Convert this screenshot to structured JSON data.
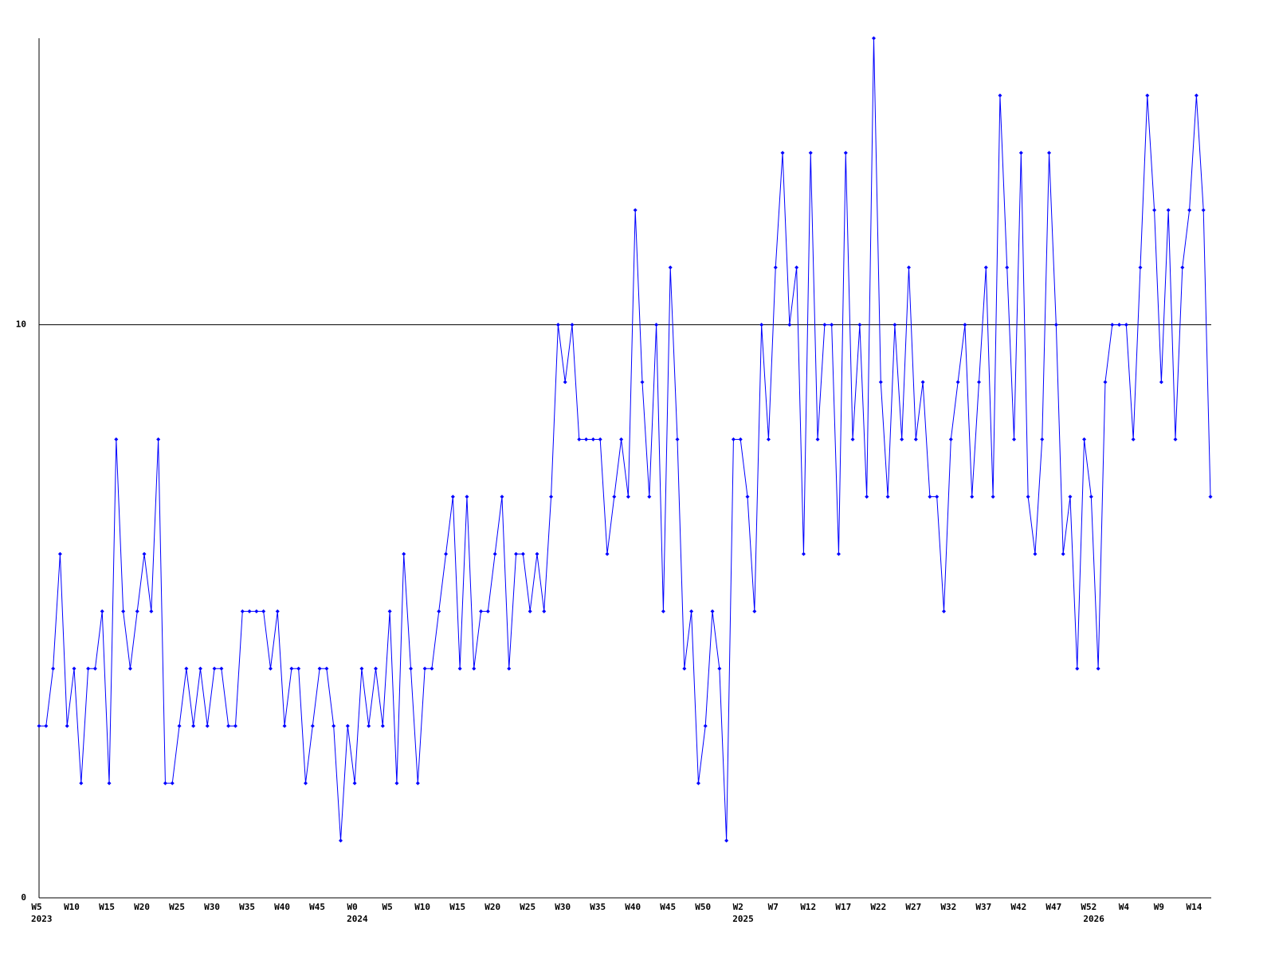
{
  "chart_data": {
    "type": "line",
    "categories": [
      "W5",
      null,
      null,
      null,
      null,
      "W10",
      null,
      null,
      null,
      null,
      "W15",
      null,
      null,
      null,
      null,
      "W20",
      null,
      null,
      null,
      null,
      "W25",
      null,
      null,
      null,
      null,
      "W30",
      null,
      null,
      null,
      null,
      "W35",
      null,
      null,
      null,
      null,
      "W40",
      null,
      null,
      null,
      null,
      "W45",
      null,
      null,
      null,
      null,
      "W0",
      null,
      null,
      null,
      null,
      "W5",
      null,
      null,
      null,
      null,
      "W10",
      null,
      null,
      null,
      null,
      "W15",
      null,
      null,
      null,
      null,
      "W20",
      null,
      null,
      null,
      null,
      "W25",
      null,
      null,
      null,
      null,
      "W30",
      null,
      null,
      null,
      null,
      "W35",
      null,
      null,
      null,
      null,
      "W40",
      null,
      null,
      null,
      null,
      "W45",
      null,
      null,
      null,
      null,
      "W50",
      null,
      null,
      null,
      null,
      "W2",
      null,
      null,
      null,
      null,
      "W7",
      null,
      null,
      null,
      null,
      "W12",
      null,
      null,
      null,
      null,
      "W17",
      null,
      null,
      null,
      null,
      "W22",
      null,
      null,
      null,
      null,
      "W27",
      null,
      null,
      null,
      null,
      "W32",
      null,
      null,
      null,
      null,
      "W37",
      null,
      null,
      null,
      null,
      "W42",
      null,
      null,
      null,
      null,
      "W47",
      null,
      null,
      null,
      null,
      "W52",
      null,
      null,
      null,
      null,
      "W4",
      null,
      null,
      null,
      null,
      "W9",
      null,
      null,
      null,
      null,
      "W14",
      null,
      null
    ],
    "year_labels": [
      "2023",
      null,
      null,
      null,
      null,
      null,
      null,
      null,
      null,
      null,
      null,
      null,
      null,
      null,
      null,
      null,
      null,
      null,
      null,
      null,
      null,
      null,
      null,
      null,
      null,
      null,
      null,
      null,
      null,
      null,
      null,
      null,
      null,
      null,
      null,
      null,
      null,
      null,
      null,
      null,
      null,
      null,
      null,
      null,
      null,
      "2024",
      null,
      null,
      null,
      null,
      null,
      null,
      null,
      null,
      null,
      null,
      null,
      null,
      null,
      null,
      null,
      null,
      null,
      null,
      null,
      null,
      null,
      null,
      null,
      null,
      null,
      null,
      null,
      null,
      null,
      null,
      null,
      null,
      null,
      null,
      null,
      null,
      null,
      null,
      null,
      null,
      null,
      null,
      null,
      null,
      null,
      null,
      null,
      null,
      null,
      null,
      null,
      null,
      null,
      null,
      "2025",
      null,
      null,
      null,
      null,
      null,
      null,
      null,
      null,
      null,
      null,
      null,
      null,
      null,
      null,
      null,
      null,
      null,
      null,
      null,
      null,
      null,
      null,
      null,
      null,
      null,
      null,
      null,
      null,
      null,
      null,
      null,
      null,
      null,
      null,
      null,
      null,
      null,
      null,
      null,
      null,
      null,
      null,
      null,
      null,
      null,
      null,
      null,
      null,
      null,
      "2026",
      null,
      null,
      null,
      null,
      null,
      null,
      null,
      null,
      null,
      null,
      null,
      null,
      null,
      null,
      null,
      null,
      null
    ],
    "series": [
      {
        "color": "#0000ff",
        "values": [
          3,
          3,
          4,
          6,
          3,
          4,
          2,
          4,
          4,
          5,
          2,
          8,
          5,
          4,
          5,
          6,
          5,
          8,
          2,
          2,
          3,
          4,
          3,
          4,
          3,
          4,
          4,
          3,
          3,
          5,
          5,
          5,
          5,
          4,
          5,
          3,
          4,
          4,
          2,
          3,
          4,
          4,
          3,
          1,
          3,
          2,
          4,
          3,
          4,
          3,
          5,
          2,
          6,
          4,
          2,
          4,
          4,
          5,
          6,
          7,
          4,
          7,
          4,
          5,
          5,
          6,
          7,
          4,
          6,
          6,
          5,
          6,
          5,
          7,
          10,
          9,
          10,
          8,
          8,
          8,
          8,
          6,
          7,
          8,
          7,
          12,
          9,
          7,
          10,
          5,
          11,
          8,
          4,
          5,
          2,
          3,
          5,
          4,
          1,
          8,
          8,
          7,
          5,
          10,
          8,
          11,
          13,
          10,
          11,
          6,
          13,
          8,
          10,
          10,
          6,
          13,
          8,
          10,
          7,
          15,
          9,
          7,
          10,
          8,
          11,
          8,
          9,
          7,
          7,
          5,
          8,
          9,
          10,
          7,
          9,
          11,
          7,
          14,
          11,
          8,
          13,
          7,
          6,
          8,
          13,
          10,
          6,
          7,
          4,
          8,
          7,
          4,
          9,
          10,
          10,
          10,
          8,
          11,
          14,
          12,
          9,
          12,
          8,
          11,
          12,
          14,
          12,
          7
        ]
      }
    ],
    "ylim": [
      0,
      15
    ],
    "yticks": [
      0,
      10
    ],
    "grid": true
  }
}
